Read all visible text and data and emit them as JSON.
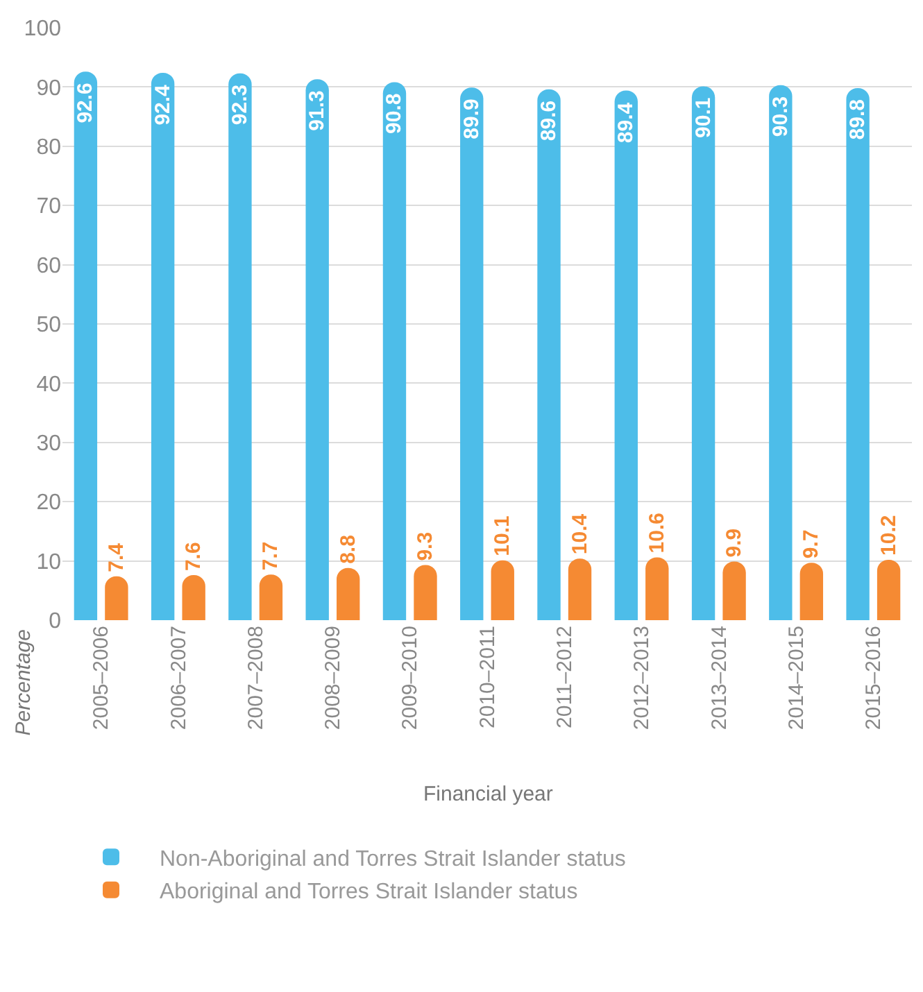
{
  "chart_data": {
    "type": "bar",
    "xlabel": "Financial year",
    "ylabel": "Percentage",
    "categories": [
      "2005–2006",
      "2006–2007",
      "2007–2008",
      "2008–2009",
      "2009–2010",
      "2010–2011",
      "2011–2012",
      "2012–2013",
      "2013–2014",
      "2014–2015",
      "2015–2016"
    ],
    "series": [
      {
        "name": "Non-Aboriginal and Torres Strait Islander status",
        "color": "#4dbde9",
        "values": [
          92.6,
          92.4,
          92.3,
          91.3,
          90.8,
          89.9,
          89.6,
          89.4,
          90.1,
          90.3,
          89.8
        ]
      },
      {
        "name": "Aboriginal and Torres Strait Islander status",
        "color": "#f58a33",
        "values": [
          7.4,
          7.6,
          7.7,
          8.8,
          9.3,
          10.1,
          10.4,
          10.6,
          9.9,
          9.7,
          10.2
        ]
      }
    ],
    "ylim": [
      0,
      100
    ],
    "yticks": [
      0,
      10,
      20,
      30,
      40,
      50,
      60,
      70,
      80,
      90,
      100
    ],
    "grid": "y",
    "legend": "bottom",
    "data_labels": true
  }
}
